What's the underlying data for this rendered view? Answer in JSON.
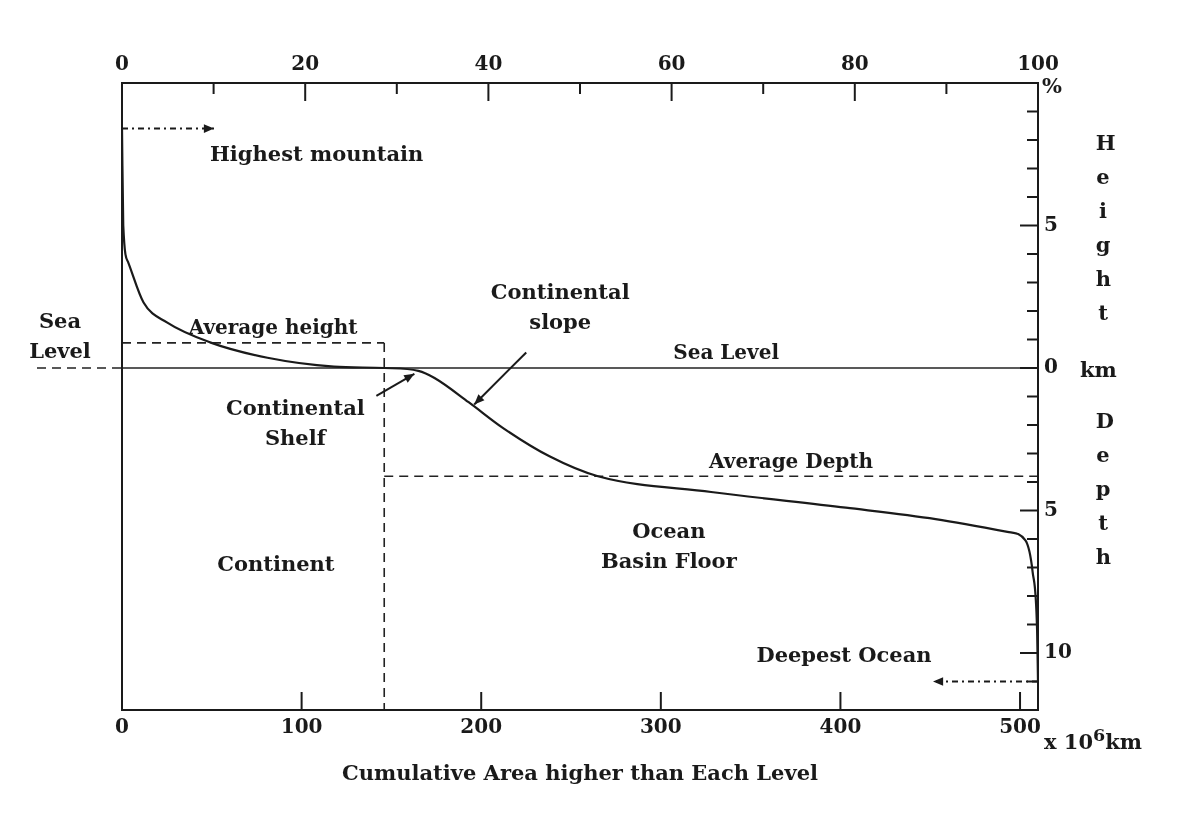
{
  "chart_data": {
    "type": "line",
    "xlabel": "Cumulative Area higher than Each Level",
    "ylabel": "Height",
    "x2label": "%",
    "x": [
      0,
      0.7,
      3.5,
      12,
      25,
      49,
      81,
      118,
      146,
      165,
      174,
      193,
      212,
      238,
      265,
      328,
      403,
      453,
      493,
      503,
      507,
      509.5,
      510
    ],
    "series": [
      {
        "color": "#1a1a1a",
        "values": [
          8.4,
          5,
          3.7,
          2.3,
          1.6,
          0.9,
          0.36,
          0.05,
          0,
          -0.1,
          -0.35,
          -1.2,
          -2.1,
          -3.1,
          -3.8,
          -4.35,
          -4.9,
          -5.3,
          -5.75,
          -6.05,
          -7.15,
          -9.2,
          -11
        ]
      }
    ],
    "xlim": [
      0,
      510
    ],
    "xticks": [
      0,
      100,
      200,
      300,
      400,
      500
    ],
    "x2lim": [
      0,
      100
    ],
    "x2ticks": [
      0,
      {
        "value": 10,
        "label": null
      },
      20,
      {
        "value": 30,
        "label": null
      },
      40,
      {
        "value": 50,
        "label": null
      },
      60,
      {
        "value": 70,
        "label": null
      },
      80,
      {
        "value": 90,
        "label": null
      },
      100
    ],
    "ylim": [
      -12,
      10
    ],
    "yticks": [
      {
        "value": 9,
        "label": null
      },
      {
        "value": 8,
        "label": null
      },
      {
        "value": 7,
        "label": null
      },
      {
        "value": 6,
        "label": null
      },
      {
        "value": 5,
        "label": "5"
      },
      {
        "value": 4,
        "label": null
      },
      {
        "value": 3,
        "label": null
      },
      {
        "value": 2,
        "label": null
      },
      {
        "value": 1,
        "label": null
      },
      {
        "value": 0,
        "label": "0"
      },
      {
        "value": -1,
        "label": null
      },
      {
        "value": -2,
        "label": null
      },
      {
        "value": -3,
        "label": null
      },
      {
        "value": -4,
        "label": null
      },
      {
        "value": -5,
        "label": "5"
      },
      {
        "value": -6,
        "label": null
      },
      {
        "value": -7,
        "label": null
      },
      {
        "value": -8,
        "label": null
      },
      {
        "value": -9,
        "label": null
      },
      {
        "value": -10,
        "label": "10"
      },
      {
        "value": -11,
        "label": null
      }
    ],
    "ref_lines": [
      {
        "axis": "y",
        "value": 0,
        "label": "Sea Level",
        "color": "#222222",
        "line_style": "solid"
      },
      {
        "axis": "y",
        "value": 0.88,
        "label": "Average height",
        "color": "#222222",
        "line_style": "dashed"
      },
      {
        "axis": "y",
        "value": -3.8,
        "label": "Average Depth",
        "color": "#222222",
        "line_style": "dashed"
      },
      {
        "axis": "x",
        "value": 146,
        "color": "#222222",
        "line_style": "dashed"
      }
    ],
    "annotations": [
      {
        "text": "Highest mountain",
        "x": 0,
        "y": 8.4
      },
      {
        "text": "Deepest Ocean",
        "x": 510,
        "y": -11
      },
      {
        "text": "Continental Shelf",
        "x": 165,
        "y": -0.1
      },
      {
        "text": "Continental slope",
        "x": 195,
        "y": -1.35
      },
      "Continent",
      "Ocean Basin Floor",
      "Sea Level",
      "x 10$^{6}$km",
      "km",
      "Depth"
    ],
    "marker": "none",
    "line_style": "solid"
  }
}
